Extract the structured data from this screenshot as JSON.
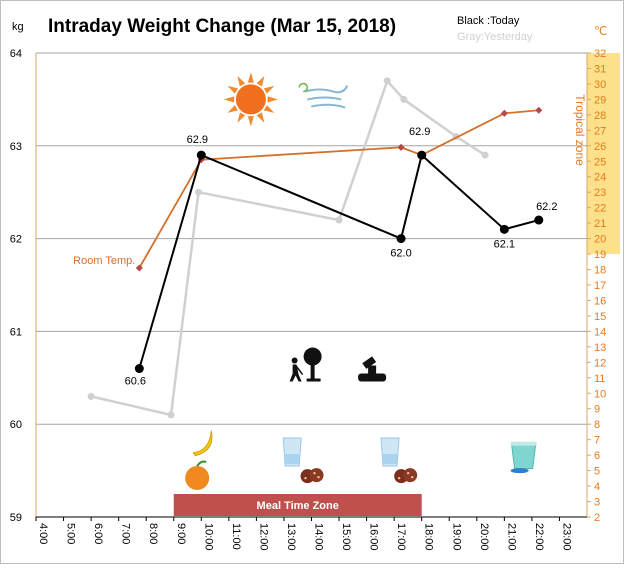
{
  "chart_data": {
    "type": "line",
    "title": "Intraday Weight Change (Mar 15, 2018)",
    "legend": {
      "placement": "top-right",
      "today_label": "Black :Today",
      "yesterday_label": "Gray:Yesterday"
    },
    "y_left": {
      "unit": "kg",
      "min": 59,
      "max": 64,
      "ticks": [
        "59",
        "60",
        "61",
        "62",
        "63",
        "64"
      ]
    },
    "y_right": {
      "unit": "℃",
      "min": 2,
      "max": 32,
      "ticks": [
        "2",
        "3",
        "4",
        "5",
        "6",
        "7",
        "8",
        "9",
        "10",
        "11",
        "12",
        "13",
        "14",
        "15",
        "16",
        "17",
        "18",
        "19",
        "20",
        "21",
        "22",
        "23",
        "24",
        "25",
        "26",
        "27",
        "28",
        "29",
        "30",
        "31",
        "32"
      ]
    },
    "x_axis": {
      "min_hour": 4,
      "max_hour": 24,
      "ticks": [
        "4:00",
        "5:00",
        "6:00",
        "7:00",
        "8:00",
        "9:00",
        "10:00",
        "11:00",
        "12:00",
        "13:00",
        "14:00",
        "15:00",
        "16:00",
        "17:00",
        "18:00",
        "19:00",
        "20:00",
        "21:00",
        "22:00",
        "23:00"
      ]
    },
    "grid": true,
    "series": [
      {
        "name": "Today",
        "color": "#000000",
        "points": [
          {
            "hour": 7.75,
            "value": 60.6,
            "label": "60.6"
          },
          {
            "hour": 10.0,
            "value": 62.9,
            "label": "62.9"
          },
          {
            "hour": 17.25,
            "value": 62.0,
            "label": "62.0"
          },
          {
            "hour": 18.0,
            "value": 62.9,
            "label": "62.9"
          },
          {
            "hour": 21.0,
            "value": 62.1,
            "label": "62.1"
          },
          {
            "hour": 22.25,
            "value": 62.2,
            "label": "62.2"
          }
        ]
      },
      {
        "name": "Yesterday",
        "color": "#d0d0d0",
        "points": [
          {
            "hour": 6.0,
            "value": 60.3
          },
          {
            "hour": 8.9,
            "value": 60.1
          },
          {
            "hour": 9.9,
            "value": 62.5
          },
          {
            "hour": 15.0,
            "value": 62.2
          },
          {
            "hour": 16.75,
            "value": 63.7
          },
          {
            "hour": 17.35,
            "value": 63.5
          },
          {
            "hour": 19.25,
            "value": 63.1
          },
          {
            "hour": 20.3,
            "value": 62.9
          }
        ]
      },
      {
        "name": "Room Temp.",
        "color": "#d4702a",
        "axis": "right",
        "points": [
          {
            "hour": 7.75,
            "value": 18.1
          },
          {
            "hour": 10.0,
            "value": 25.1
          },
          {
            "hour": 17.25,
            "value": 25.9
          },
          {
            "hour": 18.0,
            "value": 25.4
          },
          {
            "hour": 21.0,
            "value": 28.1
          },
          {
            "hour": 22.25,
            "value": 28.3
          }
        ]
      }
    ],
    "annotations": {
      "room_temp_label": "Room Temp.",
      "tropical_zone": {
        "label": "Tropical zone",
        "min": 19,
        "max": 32,
        "color": "#fde18a"
      },
      "meal_time_zone": {
        "label": "Meal Time Zone",
        "start_hour": 9.0,
        "end_hour": 18.0,
        "color": "#c0504d"
      }
    },
    "icons": [
      {
        "name": "sun-icon",
        "hour": 11.8,
        "value": 63.5
      },
      {
        "name": "wind-icon",
        "hour": 14.5,
        "value": 63.52
      },
      {
        "name": "gardening-icon",
        "hour": 13.75,
        "value": 60.6
      },
      {
        "name": "telescope-icon",
        "hour": 16.2,
        "value": 60.6
      },
      {
        "name": "banana-icon",
        "hour": 10.0,
        "value": 59.8
      },
      {
        "name": "orange-icon",
        "hour": 9.85,
        "value": 59.42
      },
      {
        "name": "water-glass-icon",
        "hour": 13.3,
        "value": 59.7
      },
      {
        "name": "cookies-icon",
        "hour": 14.0,
        "value": 59.44
      },
      {
        "name": "water-glass-icon",
        "hour": 16.85,
        "value": 59.7
      },
      {
        "name": "cookies-icon",
        "hour": 17.4,
        "value": 59.44
      },
      {
        "name": "yogurt-cup-icon",
        "hour": 21.7,
        "value": 59.65
      }
    ]
  }
}
